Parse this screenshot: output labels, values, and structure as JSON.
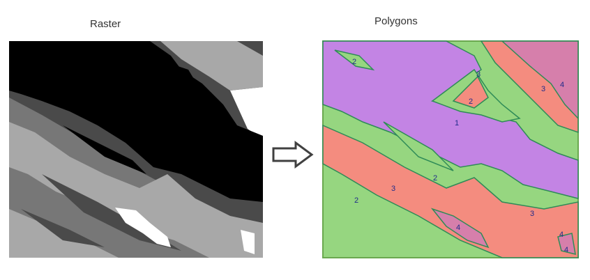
{
  "captions": {
    "raster": "Raster",
    "polygons": "Polygons"
  },
  "arrow_icon": "right-arrow-icon",
  "colors": {
    "raster_black": "#000000",
    "raster_dark": "#4a4a4a",
    "raster_mid": "#777777",
    "raster_light": "#a8a8a8",
    "raster_white": "#ffffff",
    "poly_1": "#c384e4",
    "poly_2": "#96d680",
    "poly_3": "#f48c7f",
    "poly_4": "#d67fab",
    "poly_border": "#2e8b57"
  },
  "polygon_labels": [
    "2",
    "3",
    "2",
    "3",
    "4",
    "1",
    "2",
    "3",
    "2",
    "4",
    "3",
    "4",
    "4"
  ]
}
